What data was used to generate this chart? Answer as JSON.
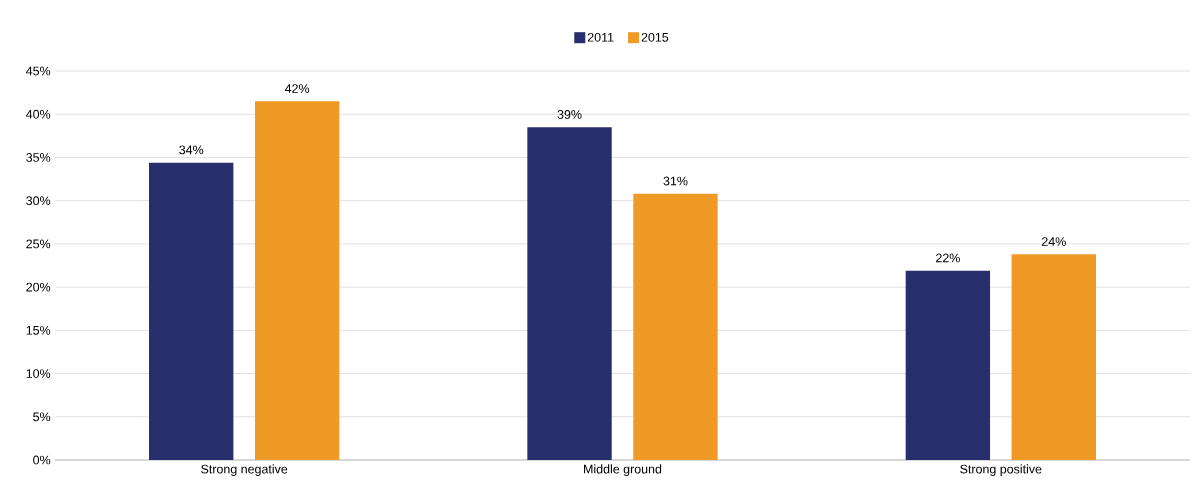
{
  "chart_data": {
    "type": "bar",
    "categories": [
      "Strong negative",
      "Middle ground",
      "Strong positive"
    ],
    "series": [
      {
        "name": "2011",
        "color": "#262f6b",
        "values": [
          34.4,
          38.5,
          21.9
        ],
        "value_labels": [
          "34%",
          "39%",
          "22%"
        ]
      },
      {
        "name": "2015",
        "color": "#ee9a24",
        "values": [
          41.5,
          30.8,
          23.8
        ],
        "value_labels": [
          "42%",
          "31%",
          "24%"
        ]
      }
    ],
    "ylim": [
      0,
      45
    ],
    "yticks": [
      {
        "value": 0,
        "label": "0%"
      },
      {
        "value": 5,
        "label": "5%"
      },
      {
        "value": 10,
        "label": "10%"
      },
      {
        "value": 15,
        "label": "15%"
      },
      {
        "value": 20,
        "label": "20%"
      },
      {
        "value": 25,
        "label": "25%"
      },
      {
        "value": 30,
        "label": "30%"
      },
      {
        "value": 35,
        "label": "35%"
      },
      {
        "value": 40,
        "label": "40%"
      },
      {
        "value": 45,
        "label": "45%"
      }
    ],
    "grid": "y",
    "legend": "top"
  }
}
